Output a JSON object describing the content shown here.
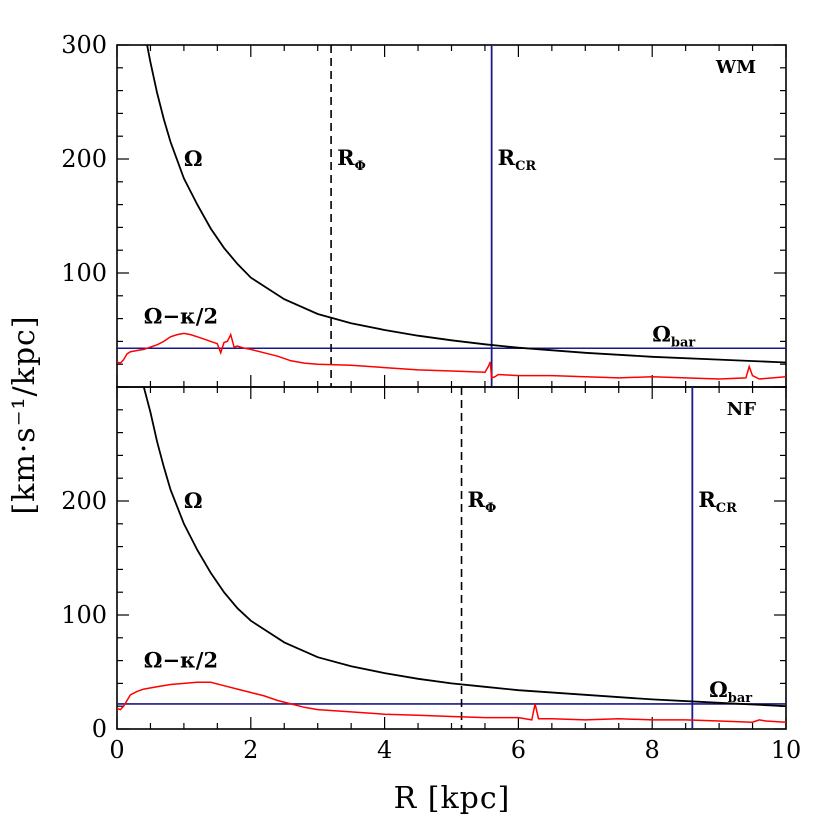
{
  "chart_data": {
    "type": "line",
    "xlabel": "R [kpc]",
    "ylabel": "[km·s⁻¹/kpc]",
    "xlim": [
      0,
      10
    ],
    "x_ticks": [
      "0",
      "2",
      "4",
      "6",
      "8",
      "10"
    ],
    "grid": false,
    "panels": [
      {
        "tag": "WM",
        "ylim": [
          0,
          300
        ],
        "y_ticks": [
          "300",
          "200",
          "100"
        ],
        "labels": {
          "omega": "Ω",
          "omega_kappa": "Ω−κ/2",
          "omega_bar": "Ω",
          "omega_bar_sub": "bar",
          "r_phi": "R",
          "r_phi_sub": "Φ",
          "r_cr": "R",
          "r_cr_sub": "CR"
        },
        "omega_bar": 34,
        "r_phi": 3.2,
        "r_cr": 5.6,
        "series": [
          {
            "id": "omega",
            "color": "#000000",
            "x": [
              0.45,
              0.5,
              0.6,
              0.7,
              0.8,
              1.0,
              1.2,
              1.4,
              1.6,
              1.8,
              2.0,
              2.5,
              3.0,
              3.5,
              4.0,
              4.5,
              5.0,
              5.5,
              6.0,
              7.0,
              8.0,
              9.0,
              10.0
            ],
            "y": [
              300,
              285,
              258,
              235,
              215,
              183,
              160,
              139,
              122,
              108,
              96,
              77,
              64,
              56,
              50,
              45,
              41,
              37.5,
              34.5,
              30,
              26.5,
              24,
              21.5
            ]
          },
          {
            "id": "omega_kappa",
            "color": "#ff0000",
            "x": [
              0,
              0.05,
              0.1,
              0.15,
              0.2,
              0.3,
              0.4,
              0.5,
              0.6,
              0.7,
              0.8,
              0.9,
              1.0,
              1.1,
              1.2,
              1.3,
              1.4,
              1.5,
              1.55,
              1.6,
              1.65,
              1.7,
              1.75,
              1.8,
              1.9,
              2.0,
              2.2,
              2.4,
              2.6,
              2.8,
              3.0,
              3.5,
              4.0,
              4.5,
              5.0,
              5.5,
              5.55,
              5.58,
              5.6,
              5.65,
              5.7,
              6.0,
              6.5,
              7.0,
              7.5,
              8.0,
              8.5,
              9.0,
              9.4,
              9.45,
              9.5,
              9.6,
              9.8,
              10.0
            ],
            "y": [
              22,
              21,
              24,
              29,
              31,
              32,
              33,
              35,
              37,
              40,
              44,
              46,
              47,
              46,
              44,
              42,
              40,
              38,
              30,
              39,
              40,
              46,
              35,
              36,
              34,
              33,
              30,
              27,
              23,
              21,
              20,
              19,
              17,
              15,
              14,
              13,
              18,
              22,
              8,
              9,
              11,
              10,
              10,
              9,
              8,
              9,
              8,
              7,
              8,
              18,
              10,
              7,
              8,
              9
            ]
          }
        ]
      },
      {
        "tag": "NF",
        "ylim": [
          0,
          300
        ],
        "y_ticks": [
          "0",
          "100",
          "200"
        ],
        "labels": {
          "omega": "Ω",
          "omega_kappa": "Ω−κ/2",
          "omega_bar": "Ω",
          "omega_bar_sub": "bar",
          "r_phi": "R",
          "r_phi_sub": "Φ",
          "r_cr": "R",
          "r_cr_sub": "CR"
        },
        "omega_bar": 22,
        "r_phi": 5.15,
        "r_cr": 8.6,
        "series": [
          {
            "id": "omega",
            "color": "#000000",
            "x": [
              0.4,
              0.5,
              0.6,
              0.7,
              0.8,
              1.0,
              1.2,
              1.4,
              1.6,
              1.8,
              2.0,
              2.5,
              3.0,
              3.5,
              4.0,
              4.5,
              5.0,
              5.5,
              6.0,
              7.0,
              8.0,
              9.0,
              10.0
            ],
            "y": [
              300,
              278,
              252,
              230,
              210,
              180,
              157,
              137,
              120,
              106,
              95,
              76,
              63,
              55,
              49,
              44,
              40,
              37,
              34,
              30,
              26,
              23,
              20
            ]
          },
          {
            "id": "omega_kappa",
            "color": "#ff0000",
            "x": [
              0,
              0.05,
              0.1,
              0.15,
              0.2,
              0.3,
              0.4,
              0.6,
              0.8,
              1.0,
              1.2,
              1.4,
              1.6,
              1.8,
              2.0,
              2.2,
              2.4,
              2.6,
              2.8,
              3.0,
              3.5,
              4.0,
              4.5,
              5.0,
              5.5,
              6.0,
              6.2,
              6.25,
              6.3,
              6.5,
              7.0,
              7.5,
              8.0,
              8.5,
              9.0,
              9.5,
              9.6,
              9.7,
              10.0
            ],
            "y": [
              18,
              17,
              20,
              25,
              30,
              33,
              35,
              37,
              39,
              40,
              41,
              41,
              38,
              35,
              32,
              29,
              25,
              22,
              19,
              17,
              15,
              13,
              12,
              11,
              10,
              10,
              8,
              22,
              9,
              9,
              8,
              9,
              8,
              8,
              7,
              6,
              8,
              7,
              6
            ]
          }
        ]
      }
    ]
  }
}
